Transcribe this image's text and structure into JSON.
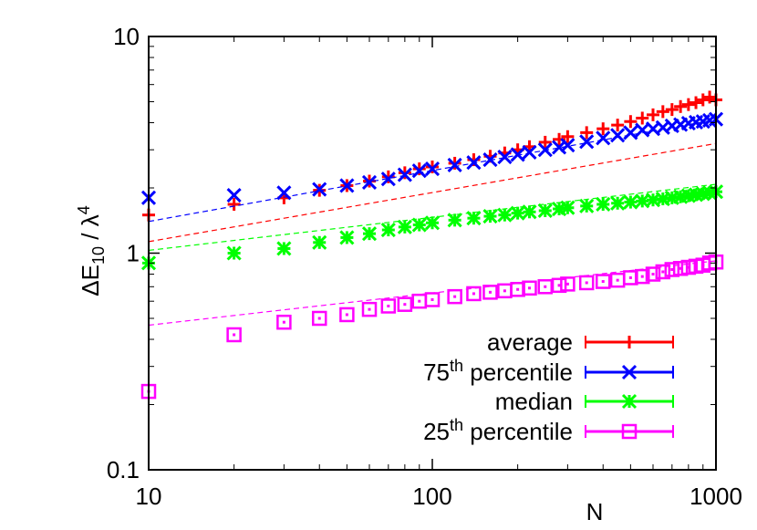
{
  "chart_data": {
    "type": "scatter",
    "x_scale": "log",
    "y_scale": "log",
    "xlim": [
      10,
      1000
    ],
    "ylim": [
      0.1,
      10
    ],
    "xlabel": "N",
    "ylabel_parts": {
      "delta": "ΔE",
      "sub": "10",
      "slash": " / λ",
      "sup": "4"
    },
    "x_ticks": [
      10,
      100,
      1000
    ],
    "x_tick_labels": [
      "10",
      "100",
      "1000"
    ],
    "y_ticks": [
      0.1,
      1,
      10
    ],
    "y_tick_labels": [
      "0.1",
      "1",
      "10"
    ],
    "grid": false,
    "legend_position": "bottom-right",
    "series": [
      {
        "name": "average",
        "legend_parts": {
          "base": "average",
          "sup": "",
          "rest": ""
        },
        "color": "#ff0000",
        "marker": "plus",
        "x": [
          10,
          20,
          30,
          40,
          50,
          60,
          70,
          80,
          90,
          100,
          120,
          140,
          160,
          180,
          200,
          220,
          250,
          280,
          300,
          350,
          400,
          450,
          500,
          550,
          600,
          650,
          700,
          750,
          800,
          850,
          900,
          950,
          1000
        ],
        "y": [
          1.5,
          1.68,
          1.8,
          1.95,
          2.05,
          2.15,
          2.25,
          2.35,
          2.45,
          2.5,
          2.6,
          2.7,
          2.8,
          2.9,
          3.0,
          3.1,
          3.25,
          3.35,
          3.45,
          3.6,
          3.75,
          3.9,
          4.05,
          4.2,
          4.35,
          4.5,
          4.6,
          4.75,
          4.85,
          4.95,
          5.1,
          5.25,
          5.1
        ],
        "fit": {
          "a": 1.13,
          "b": 0.2265
        }
      },
      {
        "name": "75th percentile",
        "legend_parts": {
          "base": "75",
          "sup": "th",
          "rest": " percentile"
        },
        "color": "#0000ff",
        "marker": "cross",
        "x": [
          10,
          20,
          30,
          40,
          50,
          60,
          70,
          80,
          90,
          100,
          120,
          140,
          160,
          180,
          200,
          220,
          250,
          280,
          300,
          350,
          400,
          450,
          500,
          550,
          600,
          650,
          700,
          750,
          800,
          850,
          900,
          950,
          1000
        ],
        "y": [
          1.8,
          1.85,
          1.9,
          1.97,
          2.05,
          2.12,
          2.2,
          2.3,
          2.4,
          2.45,
          2.55,
          2.62,
          2.7,
          2.78,
          2.85,
          2.92,
          3.0,
          3.08,
          3.15,
          3.27,
          3.4,
          3.5,
          3.6,
          3.7,
          3.75,
          3.8,
          3.87,
          3.92,
          3.98,
          4.02,
          4.05,
          4.1,
          4.15
        ],
        "fit": {
          "a": 1.4,
          "b": 0.235
        }
      },
      {
        "name": "median",
        "legend_parts": {
          "base": "median",
          "sup": "",
          "rest": ""
        },
        "color": "#00ff00",
        "marker": "star",
        "x": [
          10,
          20,
          30,
          40,
          50,
          60,
          70,
          80,
          90,
          100,
          120,
          140,
          160,
          180,
          200,
          220,
          250,
          280,
          300,
          350,
          400,
          450,
          500,
          550,
          600,
          650,
          700,
          750,
          800,
          850,
          900,
          950,
          1000
        ],
        "y": [
          0.9,
          1.0,
          1.05,
          1.12,
          1.18,
          1.23,
          1.28,
          1.32,
          1.35,
          1.38,
          1.42,
          1.45,
          1.48,
          1.5,
          1.53,
          1.55,
          1.57,
          1.6,
          1.62,
          1.65,
          1.68,
          1.7,
          1.72,
          1.74,
          1.76,
          1.78,
          1.8,
          1.82,
          1.84,
          1.86,
          1.88,
          1.9,
          1.92
        ],
        "fit": {
          "a": 1.03,
          "b": 0.1525
        }
      },
      {
        "name": "25th percentile",
        "legend_parts": {
          "base": "25",
          "sup": "th",
          "rest": " percentile"
        },
        "color": "#ff00ff",
        "marker": "square",
        "x": [
          10,
          20,
          30,
          40,
          50,
          60,
          70,
          80,
          90,
          100,
          120,
          140,
          160,
          180,
          200,
          220,
          250,
          280,
          300,
          350,
          400,
          450,
          500,
          550,
          600,
          650,
          700,
          750,
          800,
          850,
          900,
          950,
          1000
        ],
        "y": [
          0.23,
          0.42,
          0.48,
          0.5,
          0.52,
          0.55,
          0.57,
          0.58,
          0.6,
          0.61,
          0.63,
          0.65,
          0.66,
          0.67,
          0.68,
          0.69,
          0.7,
          0.71,
          0.72,
          0.73,
          0.74,
          0.75,
          0.77,
          0.78,
          0.8,
          0.82,
          0.84,
          0.85,
          0.86,
          0.87,
          0.88,
          0.9,
          0.91
        ],
        "fit": {
          "a": 0.465,
          "b": 0.1485
        }
      }
    ]
  }
}
